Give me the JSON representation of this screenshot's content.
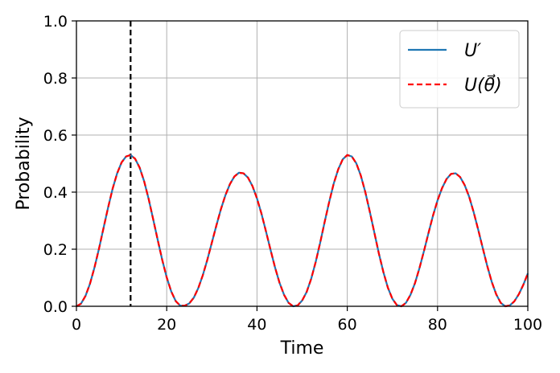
{
  "chart_data": {
    "type": "line",
    "xlabel": "Time",
    "ylabel": "Probability",
    "xlim": [
      0,
      100
    ],
    "ylim": [
      0,
      1.0
    ],
    "xticks": [
      "0",
      "20",
      "40",
      "60",
      "80",
      "100"
    ],
    "yticks": [
      "0.0",
      "0.2",
      "0.4",
      "0.6",
      "0.8",
      "1.0"
    ],
    "grid": true,
    "legend_position": "top-right",
    "vline": {
      "x": 12,
      "style": "dashed",
      "color": "#000000"
    },
    "series": [
      {
        "name": "U′",
        "color": "#1f77b4",
        "style": "solid",
        "x": [
          0,
          1,
          2,
          3,
          4,
          5,
          6,
          7,
          8,
          9,
          10,
          11,
          12,
          13,
          14,
          15,
          16,
          17,
          18,
          19,
          20,
          21,
          22,
          23,
          24,
          25,
          26,
          27,
          28,
          29,
          30,
          31,
          32,
          33,
          34,
          35,
          36,
          37,
          38,
          39,
          40,
          41,
          42,
          43,
          44,
          45,
          46,
          47,
          48,
          49,
          50,
          51,
          52,
          53,
          54,
          55,
          56,
          57,
          58,
          59,
          60,
          61,
          62,
          63,
          64,
          65,
          66,
          67,
          68,
          69,
          70,
          71,
          72,
          73,
          74,
          75,
          76,
          77,
          78,
          79,
          80,
          81,
          82,
          83,
          84,
          85,
          86,
          87,
          88,
          89,
          90,
          91,
          92,
          93,
          94,
          95,
          96,
          97,
          98,
          99,
          100
        ],
        "y": [
          0,
          0.009,
          0.036,
          0.079,
          0.136,
          0.202,
          0.274,
          0.345,
          0.411,
          0.465,
          0.504,
          0.525,
          0.53,
          0.517,
          0.486,
          0.438,
          0.376,
          0.305,
          0.233,
          0.163,
          0.101,
          0.052,
          0.018,
          0.002,
          0.002,
          0.01,
          0.03,
          0.064,
          0.109,
          0.163,
          0.223,
          0.283,
          0.34,
          0.389,
          0.428,
          0.455,
          0.468,
          0.466,
          0.451,
          0.421,
          0.378,
          0.324,
          0.262,
          0.198,
          0.136,
          0.082,
          0.04,
          0.012,
          0,
          0.003,
          0.02,
          0.05,
          0.096,
          0.155,
          0.223,
          0.296,
          0.366,
          0.43,
          0.48,
          0.515,
          0.53,
          0.525,
          0.501,
          0.458,
          0.4,
          0.331,
          0.258,
          0.185,
          0.12,
          0.065,
          0.026,
          0.004,
          0,
          0.012,
          0.04,
          0.081,
          0.134,
          0.194,
          0.257,
          0.318,
          0.371,
          0.414,
          0.446,
          0.464,
          0.466,
          0.453,
          0.425,
          0.384,
          0.33,
          0.269,
          0.205,
          0.142,
          0.086,
          0.042,
          0.012,
          0,
          0.003,
          0.017,
          0.042,
          0.075,
          0.115
        ]
      },
      {
        "name": "U(θ⃗)",
        "color": "#ff0000",
        "style": "dashed",
        "x": [
          0,
          1,
          2,
          3,
          4,
          5,
          6,
          7,
          8,
          9,
          10,
          11,
          12,
          13,
          14,
          15,
          16,
          17,
          18,
          19,
          20,
          21,
          22,
          23,
          24,
          25,
          26,
          27,
          28,
          29,
          30,
          31,
          32,
          33,
          34,
          35,
          36,
          37,
          38,
          39,
          40,
          41,
          42,
          43,
          44,
          45,
          46,
          47,
          48,
          49,
          50,
          51,
          52,
          53,
          54,
          55,
          56,
          57,
          58,
          59,
          60,
          61,
          62,
          63,
          64,
          65,
          66,
          67,
          68,
          69,
          70,
          71,
          72,
          73,
          74,
          75,
          76,
          77,
          78,
          79,
          80,
          81,
          82,
          83,
          84,
          85,
          86,
          87,
          88,
          89,
          90,
          91,
          92,
          93,
          94,
          95,
          96,
          97,
          98,
          99,
          100
        ],
        "y": [
          0,
          0.009,
          0.036,
          0.079,
          0.136,
          0.202,
          0.274,
          0.345,
          0.411,
          0.465,
          0.504,
          0.525,
          0.53,
          0.517,
          0.486,
          0.438,
          0.376,
          0.305,
          0.233,
          0.163,
          0.101,
          0.052,
          0.018,
          0.002,
          0.002,
          0.01,
          0.03,
          0.064,
          0.109,
          0.163,
          0.223,
          0.283,
          0.34,
          0.389,
          0.428,
          0.455,
          0.468,
          0.466,
          0.451,
          0.421,
          0.378,
          0.324,
          0.262,
          0.198,
          0.136,
          0.082,
          0.04,
          0.012,
          0,
          0.003,
          0.02,
          0.05,
          0.096,
          0.155,
          0.223,
          0.296,
          0.366,
          0.43,
          0.48,
          0.515,
          0.53,
          0.525,
          0.501,
          0.458,
          0.4,
          0.331,
          0.258,
          0.185,
          0.12,
          0.065,
          0.026,
          0.004,
          0,
          0.012,
          0.04,
          0.081,
          0.134,
          0.194,
          0.257,
          0.318,
          0.371,
          0.414,
          0.446,
          0.464,
          0.466,
          0.453,
          0.425,
          0.384,
          0.33,
          0.269,
          0.205,
          0.142,
          0.086,
          0.042,
          0.012,
          0,
          0.003,
          0.017,
          0.042,
          0.075,
          0.115
        ]
      }
    ]
  }
}
